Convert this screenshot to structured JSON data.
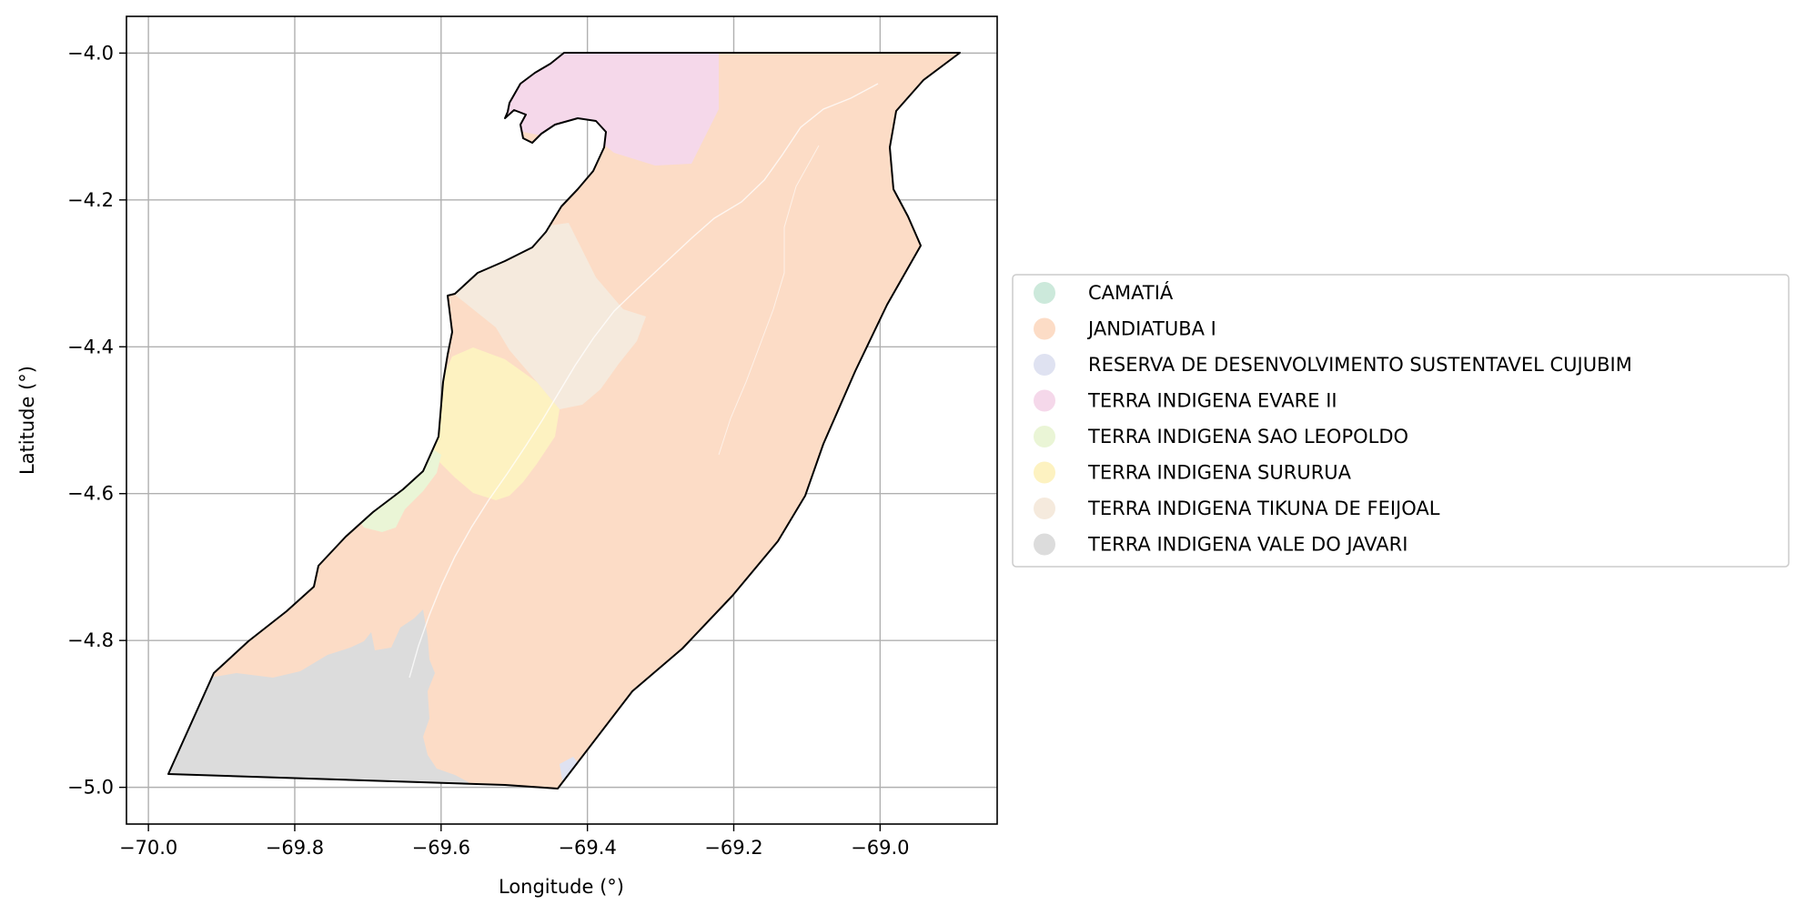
{
  "map": {
    "x_axis": {
      "label": "Longitude (°)",
      "range": [
        -70.03,
        -68.84
      ],
      "ticks": [
        {
          "value": -70.0,
          "label": "−70.0"
        },
        {
          "value": -69.8,
          "label": "−69.8"
        },
        {
          "value": -69.6,
          "label": "−69.6"
        },
        {
          "value": -69.4,
          "label": "−69.4"
        },
        {
          "value": -69.2,
          "label": "−69.2"
        },
        {
          "value": -69.0,
          "label": "−69.0"
        }
      ]
    },
    "y_axis": {
      "label": "Latitude (°)",
      "range": [
        -5.05,
        -3.95
      ],
      "ticks": [
        {
          "value": -4.0,
          "label": "−4.0"
        },
        {
          "value": -4.2,
          "label": "−4.2"
        },
        {
          "value": -4.4,
          "label": "−4.4"
        },
        {
          "value": -4.6,
          "label": "−4.6"
        },
        {
          "value": -4.8,
          "label": "−4.8"
        },
        {
          "value": -5.0,
          "label": "−5.0"
        }
      ]
    },
    "grid": true,
    "legend": {
      "placement": "right",
      "entries": [
        {
          "label": "CAMATIÁ",
          "color": "#cce9db"
        },
        {
          "label": "JANDIATUBA I",
          "color": "#fcdcc6"
        },
        {
          "label": "RESERVA DE DESENVOLVIMENTO SUSTENTAVEL CUJUBIM",
          "color": "#dfe2f1"
        },
        {
          "label": "TERRA INDIGENA EVARE II",
          "color": "#f5d8ea"
        },
        {
          "label": "TERRA INDIGENA SAO LEOPOLDO",
          "color": "#eaf5d6"
        },
        {
          "label": "TERRA INDIGENA SURURUA",
          "color": "#fdf2c1"
        },
        {
          "label": "TERRA INDIGENA TIKUNA DE FEIJOAL",
          "color": "#f5eadd"
        },
        {
          "label": "TERRA INDIGENA VALE DO JAVARI",
          "color": "#dcdcdc"
        }
      ]
    }
  }
}
